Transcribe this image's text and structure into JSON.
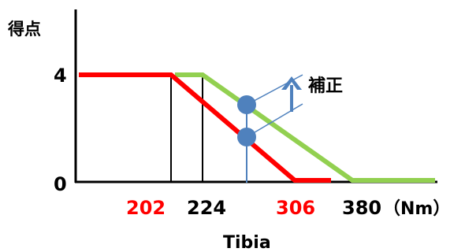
{
  "chart_data": {
    "type": "line",
    "ylabel": "得点",
    "xlabel": "Tibia",
    "x_unit": "（Nm）",
    "y_ticks": [
      "4",
      "0"
    ],
    "x_ticks": [
      {
        "label": "202",
        "color": "#ff0000"
      },
      {
        "label": "224",
        "color": "#000000"
      },
      {
        "label": "306",
        "color": "#ff0000"
      },
      {
        "label": "380",
        "color": "#000000"
      }
    ],
    "series": [
      {
        "color": "#ff0000",
        "points": [
          [
            190,
            4
          ],
          [
            202,
            4
          ],
          [
            306,
            0
          ],
          [
            322,
            0
          ]
        ]
      },
      {
        "color": "#92d050",
        "points": [
          [
            224,
            4
          ],
          [
            380,
            0
          ],
          [
            420,
            0
          ]
        ]
      }
    ],
    "markers": [
      {
        "x": 258,
        "y": 2.65,
        "color": "#4f81bd"
      },
      {
        "x": 258,
        "y": 1.46,
        "color": "#4f81bd"
      }
    ],
    "annotation": {
      "label": "補正",
      "arrow": "up"
    }
  }
}
